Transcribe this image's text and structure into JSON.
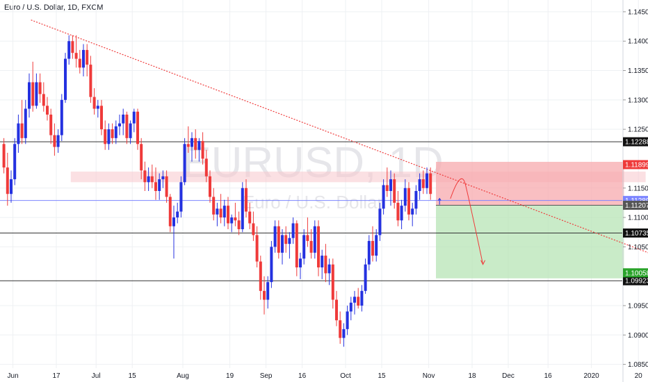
{
  "header": {
    "title": "Euro / U.S. Dollar, 1D, FXCM"
  },
  "watermark": {
    "symbol": "EURUSD, 1D",
    "name": "Euro / U.S. Dollar"
  },
  "colors": {
    "up": "#2431e0",
    "down": "#ef3a3a",
    "grid": "#eef0f3",
    "level_line": "#333333",
    "current_line": "#7b84ff",
    "trend_line": "#ef3a3a",
    "zone": "#f7c6cc",
    "stop_box": "#f7a9ae",
    "target_box": "#b7e4b6",
    "tag_dark": "#111111",
    "tag_red": "#ef3a3a",
    "tag_gray": "#555555",
    "tag_green": "#2aa32a"
  },
  "chart_data": {
    "type": "candlestick",
    "title": "Euro / U.S. Dollar, 1D, FXCM",
    "y_range": [
      1.082,
      1.147
    ],
    "y_ticks": [
      "1.14500",
      "1.14000",
      "1.13500",
      "1.13000",
      "1.12500",
      "1.11500",
      "1.11000",
      "1.10500",
      "1.09500",
      "1.09000",
      "1.08500"
    ],
    "x_ticks": [
      {
        "label": "Jun",
        "index": 3
      },
      {
        "label": "17",
        "index": 15
      },
      {
        "label": "Jul",
        "index": 26
      },
      {
        "label": "15",
        "index": 36
      },
      {
        "label": "Aug",
        "index": 50
      },
      {
        "label": "19",
        "index": 63
      },
      {
        "label": "Sep",
        "index": 73
      },
      {
        "label": "16",
        "index": 83
      },
      {
        "label": "Oct",
        "index": 95
      },
      {
        "label": "15",
        "index": 105
      },
      {
        "label": "Nov",
        "index": 118
      },
      {
        "label": "18",
        "index": 130
      },
      {
        "label": "Dec",
        "index": 140
      },
      {
        "label": "16",
        "index": 151
      },
      {
        "label": "2020",
        "index": 163
      },
      {
        "label": "20",
        "index": 176
      }
    ],
    "horizontal_levels": [
      {
        "value": 1.12288,
        "label": "1.12288",
        "tag": "dark"
      },
      {
        "value": 1.10735,
        "label": "1.10735",
        "tag": "dark"
      },
      {
        "value": 1.09923,
        "label": "1.09923",
        "tag": "dark"
      }
    ],
    "current_price": {
      "value": 1.11289,
      "label": "1.11289"
    },
    "trade": {
      "stop": {
        "value": 1.11899,
        "label": "1.11899"
      },
      "entry": {
        "value": 1.11207,
        "label": "1.11207"
      },
      "target": {
        "value": 1.10058,
        "label": "1.10058"
      },
      "start_index": 120,
      "end_index": 172
    },
    "resistance_zone": {
      "from": 1.116,
      "to": 1.1178,
      "start_index": 19,
      "end_index": 178
    },
    "trend_line": {
      "start": {
        "index": 8,
        "value": 1.1436
      },
      "end": {
        "index": 180,
        "value": 1.1037
      }
    },
    "projection": {
      "start": {
        "index": 124,
        "value": 1.1132
      },
      "peak": {
        "index": 127,
        "value": 1.1163
      },
      "end": {
        "index": 133,
        "value": 1.102
      }
    },
    "candles": [
      [
        1.1225,
        1.1235,
        1.1175,
        1.1185
      ],
      [
        1.1185,
        1.121,
        1.112,
        1.114
      ],
      [
        1.114,
        1.118,
        1.1125,
        1.1165
      ],
      [
        1.1165,
        1.1235,
        1.1155,
        1.1225
      ],
      [
        1.1225,
        1.1275,
        1.121,
        1.126
      ],
      [
        1.126,
        1.13,
        1.1225,
        1.1235
      ],
      [
        1.1235,
        1.13,
        1.1225,
        1.1285
      ],
      [
        1.1285,
        1.1345,
        1.127,
        1.133
      ],
      [
        1.133,
        1.1365,
        1.128,
        1.129
      ],
      [
        1.129,
        1.1345,
        1.1285,
        1.133
      ],
      [
        1.133,
        1.1345,
        1.1295,
        1.131
      ],
      [
        1.131,
        1.133,
        1.128,
        1.129
      ],
      [
        1.129,
        1.1305,
        1.1265,
        1.1275
      ],
      [
        1.1275,
        1.1285,
        1.1225,
        1.124
      ],
      [
        1.124,
        1.126,
        1.1205,
        1.122
      ],
      [
        1.122,
        1.125,
        1.121,
        1.124
      ],
      [
        1.124,
        1.131,
        1.123,
        1.13
      ],
      [
        1.13,
        1.138,
        1.1295,
        1.137
      ],
      [
        1.137,
        1.141,
        1.136,
        1.14
      ],
      [
        1.14,
        1.141,
        1.137,
        1.138
      ],
      [
        1.138,
        1.141,
        1.1355,
        1.137
      ],
      [
        1.137,
        1.1385,
        1.1345,
        1.1355
      ],
      [
        1.1355,
        1.1395,
        1.134,
        1.1385
      ],
      [
        1.1385,
        1.1395,
        1.134,
        1.136
      ],
      [
        1.136,
        1.1375,
        1.1295,
        1.1305
      ],
      [
        1.1305,
        1.132,
        1.1275,
        1.1285
      ],
      [
        1.1285,
        1.13,
        1.127,
        1.129
      ],
      [
        1.129,
        1.13,
        1.124,
        1.125
      ],
      [
        1.125,
        1.1265,
        1.1215,
        1.1225
      ],
      [
        1.1225,
        1.126,
        1.1215,
        1.125
      ],
      [
        1.125,
        1.126,
        1.1225,
        1.1235
      ],
      [
        1.1235,
        1.1265,
        1.1225,
        1.1255
      ],
      [
        1.1255,
        1.1275,
        1.124,
        1.126
      ],
      [
        1.126,
        1.1285,
        1.124,
        1.1275
      ],
      [
        1.1275,
        1.128,
        1.1225,
        1.1235
      ],
      [
        1.1235,
        1.1265,
        1.1225,
        1.126
      ],
      [
        1.126,
        1.1285,
        1.1245,
        1.128
      ],
      [
        1.128,
        1.1285,
        1.1215,
        1.1225
      ],
      [
        1.1225,
        1.1235,
        1.1165,
        1.118
      ],
      [
        1.118,
        1.1195,
        1.1145,
        1.116
      ],
      [
        1.116,
        1.1185,
        1.1145,
        1.117
      ],
      [
        1.117,
        1.119,
        1.115,
        1.116
      ],
      [
        1.116,
        1.1185,
        1.113,
        1.1145
      ],
      [
        1.1145,
        1.1175,
        1.113,
        1.1165
      ],
      [
        1.1165,
        1.118,
        1.115,
        1.117
      ],
      [
        1.117,
        1.118,
        1.1125,
        1.1135
      ],
      [
        1.1135,
        1.114,
        1.1075,
        1.1085
      ],
      [
        1.1085,
        1.112,
        1.103,
        1.11
      ],
      [
        1.11,
        1.1125,
        1.109,
        1.111
      ],
      [
        1.111,
        1.117,
        1.11,
        1.116
      ],
      [
        1.116,
        1.1235,
        1.1155,
        1.1225
      ],
      [
        1.1225,
        1.1255,
        1.121,
        1.122
      ],
      [
        1.122,
        1.1245,
        1.1195,
        1.1235
      ],
      [
        1.1235,
        1.125,
        1.12,
        1.1215
      ],
      [
        1.1215,
        1.1235,
        1.1195,
        1.123
      ],
      [
        1.123,
        1.1245,
        1.119,
        1.12
      ],
      [
        1.12,
        1.1215,
        1.116,
        1.117
      ],
      [
        1.117,
        1.118,
        1.1125,
        1.1135
      ],
      [
        1.1135,
        1.115,
        1.1095,
        1.1105
      ],
      [
        1.1105,
        1.1125,
        1.1085,
        1.1115
      ],
      [
        1.1115,
        1.114,
        1.109,
        1.11
      ],
      [
        1.11,
        1.113,
        1.1085,
        1.112
      ],
      [
        1.112,
        1.1135,
        1.108,
        1.109
      ],
      [
        1.109,
        1.1105,
        1.1075,
        1.11
      ],
      [
        1.11,
        1.1125,
        1.1085,
        1.1095
      ],
      [
        1.1095,
        1.111,
        1.107,
        1.108
      ],
      [
        1.108,
        1.116,
        1.1075,
        1.115
      ],
      [
        1.115,
        1.1165,
        1.11,
        1.111
      ],
      [
        1.111,
        1.1125,
        1.108,
        1.109
      ],
      [
        1.109,
        1.111,
        1.106,
        1.107
      ],
      [
        1.107,
        1.1085,
        1.1015,
        1.1025
      ],
      [
        1.1025,
        1.1035,
        1.096,
        1.0975
      ],
      [
        1.0975,
        1.1,
        1.0935,
        1.096
      ],
      [
        1.096,
        1.1,
        1.0945,
        1.099
      ],
      [
        1.099,
        1.106,
        1.098,
        1.105
      ],
      [
        1.105,
        1.1095,
        1.104,
        1.1085
      ],
      [
        1.1085,
        1.1095,
        1.103,
        1.104
      ],
      [
        1.104,
        1.108,
        1.102,
        1.107
      ],
      [
        1.107,
        1.1085,
        1.104,
        1.1055
      ],
      [
        1.1055,
        1.1075,
        1.103,
        1.1065
      ],
      [
        1.1065,
        1.11,
        1.1055,
        1.109
      ],
      [
        1.109,
        1.1095,
        1.1,
        1.1015
      ],
      [
        1.1015,
        1.104,
        1.0995,
        1.103
      ],
      [
        1.103,
        1.108,
        1.102,
        1.107
      ],
      [
        1.107,
        1.11,
        1.105,
        1.106
      ],
      [
        1.106,
        1.108,
        1.103,
        1.104
      ],
      [
        1.104,
        1.1095,
        1.103,
        1.1085
      ],
      [
        1.1085,
        1.1095,
        1.1,
        1.1015
      ],
      [
        1.1015,
        1.1045,
        1.0995,
        1.1035
      ],
      [
        1.1035,
        1.1055,
        1.099,
        1.1005
      ],
      [
        1.1005,
        1.103,
        1.0985,
        1.102
      ],
      [
        1.102,
        1.103,
        1.0945,
        1.096
      ],
      [
        1.096,
        1.0975,
        1.0915,
        1.0925
      ],
      [
        1.0925,
        1.094,
        1.0885,
        1.0895
      ],
      [
        1.0895,
        1.092,
        1.088,
        1.091
      ],
      [
        1.091,
        1.095,
        1.09,
        1.094
      ],
      [
        1.094,
        1.0965,
        1.0925,
        1.0955
      ],
      [
        1.0955,
        1.0975,
        1.0935,
        1.0965
      ],
      [
        1.0965,
        1.098,
        1.0945,
        1.095
      ],
      [
        1.095,
        1.0985,
        1.094,
        1.0975
      ],
      [
        1.0975,
        1.103,
        1.097,
        1.102
      ],
      [
        1.102,
        1.107,
        1.101,
        1.106
      ],
      [
        1.106,
        1.1085,
        1.1025,
        1.1035
      ],
      [
        1.1035,
        1.108,
        1.1025,
        1.107
      ],
      [
        1.107,
        1.1125,
        1.106,
        1.1115
      ],
      [
        1.1115,
        1.1165,
        1.1105,
        1.1155
      ],
      [
        1.1155,
        1.1185,
        1.1135,
        1.1145
      ],
      [
        1.1145,
        1.118,
        1.112,
        1.1165
      ],
      [
        1.1165,
        1.1175,
        1.1115,
        1.1125
      ],
      [
        1.1125,
        1.1145,
        1.1085,
        1.1095
      ],
      [
        1.1095,
        1.113,
        1.108,
        1.112
      ],
      [
        1.112,
        1.1165,
        1.111,
        1.115
      ],
      [
        1.115,
        1.116,
        1.1095,
        1.1105
      ],
      [
        1.1105,
        1.1125,
        1.1085,
        1.1115
      ],
      [
        1.1115,
        1.1155,
        1.1105,
        1.1145
      ],
      [
        1.1145,
        1.1175,
        1.113,
        1.1165
      ],
      [
        1.1165,
        1.118,
        1.114,
        1.115
      ],
      [
        1.115,
        1.1185,
        1.114,
        1.1175
      ],
      [
        1.1175,
        1.1185,
        1.113,
        1.114
      ]
    ]
  }
}
